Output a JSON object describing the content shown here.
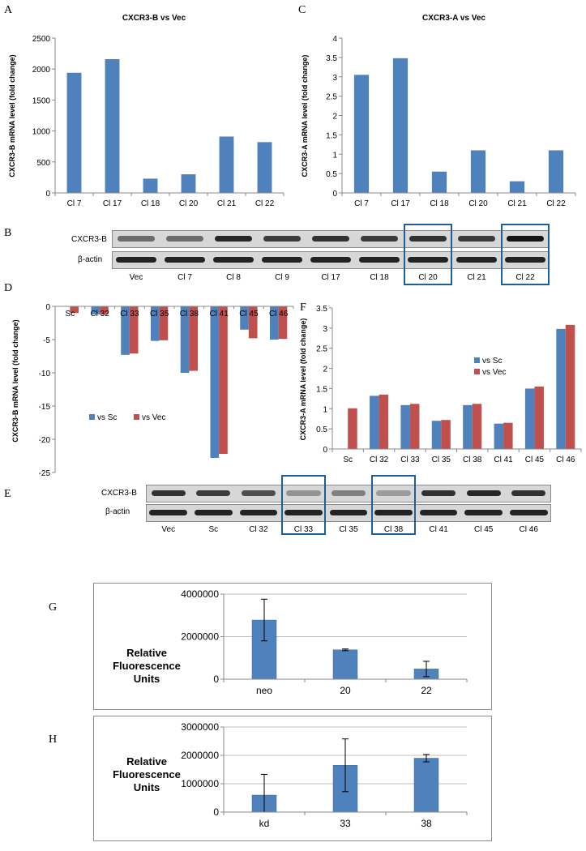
{
  "panels": {
    "A": "A",
    "B": "B",
    "C": "C",
    "D": "D",
    "E": "E",
    "F": "F",
    "G": "G",
    "H": "H"
  },
  "colors": {
    "blue": "#4f81bd",
    "red": "#c0504d",
    "box": "#1f5f99",
    "grid": "#bfbfbf"
  },
  "blotB": {
    "rows": [
      "CXCR3-B",
      "β-actin"
    ],
    "lanes": [
      "Vec",
      "Cl 7",
      "Cl 8",
      "Cl 9",
      "Cl 17",
      "Cl 18",
      "Cl 20",
      "Cl 21",
      "Cl 22"
    ],
    "band_intensity": [
      0.55,
      0.55,
      0.9,
      0.8,
      0.85,
      0.8,
      0.85,
      0.8,
      1.0
    ],
    "highlighted": [
      "Cl 20",
      "Cl 22"
    ]
  },
  "blotE": {
    "rows": [
      "CXCR3-B",
      "β-actin"
    ],
    "lanes": [
      "Vec",
      "Sc",
      "Cl 32",
      "Cl 33",
      "Cl 35",
      "Cl 38",
      "Cl 41",
      "Cl 45",
      "Cl 46"
    ],
    "band_intensity": [
      0.85,
      0.8,
      0.7,
      0.35,
      0.45,
      0.3,
      0.85,
      0.9,
      0.85
    ],
    "highlighted": [
      "Cl 33",
      "Cl 38"
    ]
  },
  "chart_data": [
    {
      "id": "A",
      "type": "bar",
      "title": "CXCR3-B vs Vec",
      "ylabel": "CXCR3-B mRNA level (fold change)",
      "categories": [
        "Cl 7",
        "Cl 17",
        "Cl 18",
        "Cl 20",
        "Cl 21",
        "Cl 22"
      ],
      "values": [
        1940,
        2160,
        230,
        300,
        910,
        820
      ],
      "ylim": [
        0,
        2500
      ],
      "yticks": [
        "0",
        "500",
        "1000",
        "1500",
        "2000",
        "2500"
      ],
      "ytick_values": [
        0,
        500,
        1000,
        1500,
        2000,
        2500
      ],
      "cat_labels_below": true
    },
    {
      "id": "C",
      "type": "bar",
      "title": "CXCR3-A vs Vec",
      "ylabel": "CXCR3-A mRNA level (fold change)",
      "categories": [
        "Cl 7",
        "Cl 17",
        "Cl 18",
        "Cl 20",
        "Cl 21",
        "Cl 22"
      ],
      "values": [
        3.05,
        3.48,
        0.55,
        1.1,
        0.3,
        1.1
      ],
      "ylim": [
        0,
        4
      ],
      "yticks": [
        "0",
        "0.5",
        "1",
        "1.5",
        "2",
        "2.5",
        "3",
        "3.5",
        "4"
      ],
      "ytick_values": [
        0,
        0.5,
        1,
        1.5,
        2,
        2.5,
        3,
        3.5,
        4
      ],
      "cat_labels_below": true
    },
    {
      "id": "D",
      "type": "bar",
      "title": "",
      "ylabel": "CXCR3-B mRNA level (fold change)",
      "categories": [
        "Sc",
        "Cl 32",
        "Cl 33",
        "Cl 35",
        "Cl 38",
        "Cl 41",
        "Cl 45",
        "Cl 46"
      ],
      "series": [
        {
          "name": "vs Sc",
          "values": [
            0,
            -1.2,
            -7.3,
            -5.2,
            -10,
            -22.8,
            -3.5,
            -5
          ]
        },
        {
          "name": "vs Vec",
          "values": [
            -1,
            -1.2,
            -7.1,
            -5.1,
            -9.7,
            -22.2,
            -4.8,
            -4.9
          ]
        }
      ],
      "ylim": [
        -25,
        0
      ],
      "yticks": [
        "0",
        "-5",
        "-10",
        "-15",
        "-20",
        "-25"
      ],
      "ytick_values": [
        0,
        -5,
        -10,
        -15,
        -20,
        -25
      ],
      "legend": [
        "vs Sc",
        "vs Vec"
      ],
      "cat_labels_below": false
    },
    {
      "id": "F",
      "type": "bar",
      "title": "",
      "ylabel": "CXCR3-A mRNA level (fold change)",
      "categories": [
        "Sc",
        "Cl 32",
        "Cl 33",
        "Cl 35",
        "Cl 38",
        "Cl 41",
        "Cl 45",
        "Cl 46"
      ],
      "series": [
        {
          "name": "vs Sc",
          "values": [
            0,
            1.32,
            1.09,
            0.7,
            1.09,
            0.63,
            1.5,
            2.98
          ]
        },
        {
          "name": "vs Vec",
          "values": [
            1.01,
            1.35,
            1.12,
            0.72,
            1.12,
            0.65,
            1.55,
            3.08
          ]
        }
      ],
      "ylim": [
        0,
        3.5
      ],
      "yticks": [
        "0",
        "0.5",
        "1",
        "1.5",
        "2",
        "2.5",
        "3",
        "3.5"
      ],
      "ytick_values": [
        0,
        0.5,
        1,
        1.5,
        2,
        2.5,
        3,
        3.5
      ],
      "legend": [
        "vs Sc",
        "vs Vec"
      ],
      "cat_labels_below": true
    },
    {
      "id": "G",
      "type": "bar",
      "title": "",
      "ylabel": "Relative Fluorescence Units",
      "categories": [
        "neo",
        "20",
        "22"
      ],
      "values": [
        2780000,
        1380000,
        480000
      ],
      "errors": [
        980000,
        40000,
        360000
      ],
      "ylim": [
        0,
        4000000
      ],
      "yticks": [
        "0",
        "2000000",
        "4000000"
      ],
      "ytick_values": [
        0,
        2000000,
        4000000
      ],
      "cat_labels_below": true
    },
    {
      "id": "H",
      "type": "bar",
      "title": "",
      "ylabel": "Relative Fluorescence Units",
      "categories": [
        "kd",
        "33",
        "38"
      ],
      "values": [
        600000,
        1650000,
        1900000
      ],
      "errors": [
        730000,
        930000,
        130000
      ],
      "ylim": [
        0,
        3000000
      ],
      "yticks": [
        "0",
        "1000000",
        "2000000",
        "3000000"
      ],
      "ytick_values": [
        0,
        1000000,
        2000000,
        3000000
      ],
      "cat_labels_below": true
    }
  ]
}
